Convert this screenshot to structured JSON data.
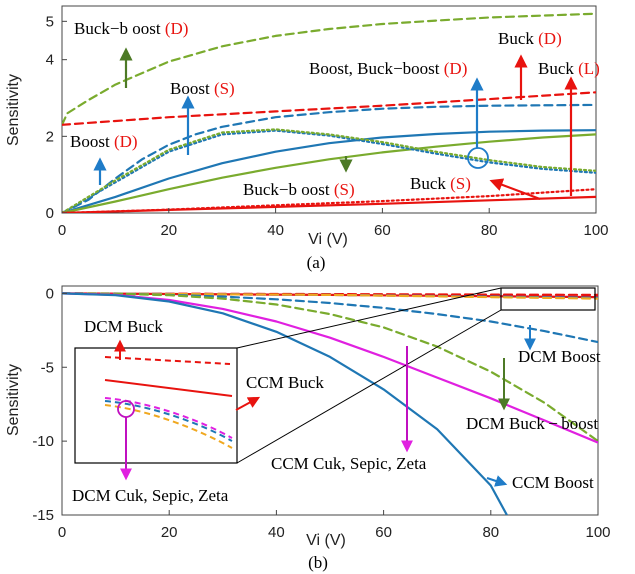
{
  "colors": {
    "blue": "#1f77b4",
    "red": "#e8130f",
    "green": "#7aab2e",
    "dark_green": "#4d7a26",
    "magenta": "#e020e0",
    "orange": "#f0a820",
    "arrow_blue": "#1f7cc8"
  },
  "chart_data": [
    {
      "type": "line",
      "caption": "(a)",
      "xlabel": "Vi (V)",
      "ylabel": "Sensitivity",
      "xlim": [
        0,
        100
      ],
      "ylim": [
        0,
        5.4
      ],
      "xticks": [
        0,
        20,
        40,
        60,
        80,
        100
      ],
      "yticks": [
        0,
        2,
        4,
        5
      ],
      "series": [
        {
          "key": "buckboost_d",
          "color": "green",
          "style": "dashed",
          "x": [
            0,
            1,
            5,
            10,
            20,
            30,
            40,
            50,
            60,
            70,
            80,
            90,
            100
          ],
          "y": [
            2.3,
            2.6,
            2.95,
            3.35,
            3.95,
            4.35,
            4.62,
            4.8,
            4.93,
            5.02,
            5.1,
            5.15,
            5.2
          ]
        },
        {
          "key": "buck_d",
          "color": "red",
          "style": "dashed",
          "x": [
            0,
            20,
            40,
            60,
            80,
            100
          ],
          "y": [
            2.3,
            2.5,
            2.65,
            2.8,
            2.97,
            3.15
          ]
        },
        {
          "key": "boost_d",
          "color": "blue",
          "style": "dashed",
          "x": [
            0,
            5,
            10,
            15,
            20,
            25,
            30,
            40,
            50,
            60,
            70,
            80,
            90,
            100
          ],
          "y": [
            0,
            0.35,
            0.9,
            1.4,
            1.78,
            2.05,
            2.25,
            2.5,
            2.63,
            2.72,
            2.77,
            2.8,
            2.81,
            2.82
          ]
        },
        {
          "key": "boost_s",
          "color": "blue",
          "style": "solid",
          "x": [
            0,
            10,
            20,
            30,
            40,
            50,
            60,
            70,
            80,
            90,
            100
          ],
          "y": [
            0,
            0.42,
            0.9,
            1.3,
            1.6,
            1.82,
            1.97,
            2.06,
            2.12,
            2.15,
            2.16
          ]
        },
        {
          "key": "buckboost_s",
          "color": "green",
          "style": "solid",
          "x": [
            0,
            10,
            20,
            30,
            40,
            50,
            60,
            70,
            80,
            90,
            100
          ],
          "y": [
            0,
            0.3,
            0.62,
            0.92,
            1.18,
            1.4,
            1.58,
            1.73,
            1.86,
            1.97,
            2.05
          ]
        },
        {
          "key": "buck_s_boost_buckboost_d",
          "color": "blue",
          "style": "dotted",
          "x": [
            0,
            10,
            20,
            30,
            40,
            50,
            60,
            70,
            80,
            90,
            100
          ],
          "y": [
            0,
            0.8,
            1.6,
            2.05,
            2.15,
            2.02,
            1.8,
            1.55,
            1.32,
            1.15,
            1.05
          ]
        },
        {
          "key": "buckboost_dotted",
          "color": "green",
          "style": "dotted",
          "x": [
            0,
            10,
            20,
            30,
            40,
            50,
            60,
            70,
            80,
            90,
            100
          ],
          "y": [
            0,
            0.85,
            1.65,
            2.1,
            2.18,
            2.05,
            1.85,
            1.6,
            1.38,
            1.2,
            1.1
          ]
        },
        {
          "key": "buck_s",
          "color": "red",
          "style": "dotted",
          "x": [
            0,
            20,
            40,
            60,
            80,
            100
          ],
          "y": [
            0,
            0.09,
            0.2,
            0.31,
            0.44,
            0.62
          ]
        },
        {
          "key": "buck_l",
          "color": "red",
          "style": "solid",
          "x": [
            0,
            20,
            40,
            60,
            80,
            100
          ],
          "y": [
            0,
            0.08,
            0.16,
            0.24,
            0.33,
            0.42
          ]
        }
      ],
      "annotations": [
        {
          "parts": [
            [
              "Buck",
              "black"
            ],
            [
              "−",
              "black"
            ],
            [
              "b oost ",
              "black"
            ],
            [
              "(D)",
              "red"
            ]
          ]
        },
        {
          "parts": [
            [
              "Boost ",
              "black"
            ],
            [
              "(S)",
              "red"
            ]
          ]
        },
        {
          "parts": [
            [
              "Boost ",
              "black"
            ],
            [
              "(D)",
              "red"
            ]
          ]
        },
        {
          "parts": [
            [
              "Buck",
              "black"
            ],
            [
              "−",
              "black"
            ],
            [
              "b oost ",
              "black"
            ],
            [
              "(S)",
              "red"
            ]
          ]
        },
        {
          "parts": [
            [
              "Buck ",
              "black"
            ],
            [
              "(D)",
              "red"
            ]
          ]
        },
        {
          "parts": [
            [
              "Boost, Buck",
              "black"
            ],
            [
              "−",
              "black"
            ],
            [
              "boost ",
              "black"
            ],
            [
              "(D)",
              "red"
            ]
          ]
        },
        {
          "parts": [
            [
              "Buck ",
              "black"
            ],
            [
              "(L)",
              "red"
            ]
          ]
        },
        {
          "parts": [
            [
              "Buck ",
              "black"
            ],
            [
              "(S)",
              "red"
            ]
          ]
        }
      ]
    },
    {
      "type": "line",
      "caption": "(b)",
      "xlabel": "Vi (V)",
      "ylabel": "Sensitivity",
      "xlim": [
        0,
        100
      ],
      "ylim": [
        -15,
        0.5
      ],
      "xticks": [
        0,
        20,
        40,
        60,
        80,
        100
      ],
      "yticks": [
        0,
        -5,
        -10,
        -15
      ],
      "series": [
        {
          "key": "dcm_buck",
          "color": "red",
          "style": "dashed",
          "x": [
            0,
            50,
            100
          ],
          "y": [
            0,
            -0.05,
            -0.1
          ]
        },
        {
          "key": "ccm_buck",
          "color": "red",
          "style": "solid",
          "x": [
            0,
            50,
            100
          ],
          "y": [
            0,
            -0.1,
            -0.25
          ]
        },
        {
          "key": "dcm_cuk_magenta",
          "color": "magenta",
          "style": "dashed",
          "x": [
            0,
            50,
            100
          ],
          "y": [
            0,
            -0.1,
            -0.3
          ]
        },
        {
          "key": "dcm_cuk_blue",
          "color": "blue",
          "style": "dashed",
          "x": [
            0,
            50,
            100
          ],
          "y": [
            0,
            -0.1,
            -0.3
          ]
        },
        {
          "key": "dcm_cuk_orange",
          "color": "orange",
          "style": "dashed",
          "x": [
            0,
            50,
            100
          ],
          "y": [
            0,
            -0.1,
            -0.35
          ]
        },
        {
          "key": "dcm_boost",
          "color": "blue",
          "style": "dashed",
          "x": [
            0,
            10,
            20,
            30,
            40,
            50,
            60,
            70,
            80,
            90,
            100
          ],
          "y": [
            0,
            -0.02,
            -0.1,
            -0.22,
            -0.4,
            -0.65,
            -0.98,
            -1.4,
            -1.9,
            -2.55,
            -3.3
          ]
        },
        {
          "key": "dcm_buckboost",
          "color": "green",
          "style": "dashed",
          "x": [
            0,
            10,
            20,
            30,
            40,
            50,
            60,
            70,
            80,
            90,
            100
          ],
          "y": [
            0,
            -0.02,
            -0.12,
            -0.35,
            -0.75,
            -1.4,
            -2.3,
            -3.6,
            -5.3,
            -7.4,
            -10.0
          ]
        },
        {
          "key": "ccm_cuk_sepic_zeta",
          "color": "magenta",
          "style": "solid",
          "x": [
            0,
            10,
            20,
            30,
            40,
            50,
            60,
            70,
            80,
            90,
            100
          ],
          "y": [
            0,
            -0.1,
            -0.45,
            -1.05,
            -1.9,
            -3.0,
            -4.3,
            -5.7,
            -7.1,
            -8.6,
            -10.1
          ]
        },
        {
          "key": "ccm_boost",
          "color": "blue",
          "style": "solid",
          "x": [
            0,
            10,
            20,
            30,
            40,
            50,
            60,
            70,
            80,
            83
          ],
          "y": [
            0,
            -0.12,
            -0.55,
            -1.35,
            -2.6,
            -4.3,
            -6.5,
            -9.2,
            -13.0,
            -15.0
          ]
        }
      ],
      "inset": {
        "x_range": [
          82,
          100
        ],
        "y_range": [
          -0.5,
          0.3
        ]
      },
      "annotations": [
        {
          "text": "DCM Buck"
        },
        {
          "text": "CCM Buck"
        },
        {
          "text": "DCM Cuk, Sepic, Zeta"
        },
        {
          "text": "DCM Boost"
        },
        {
          "text": "DCM Buck − boost"
        },
        {
          "text": "CCM Cuk, Sepic, Zeta"
        },
        {
          "text": "CCM Boost"
        }
      ]
    }
  ]
}
